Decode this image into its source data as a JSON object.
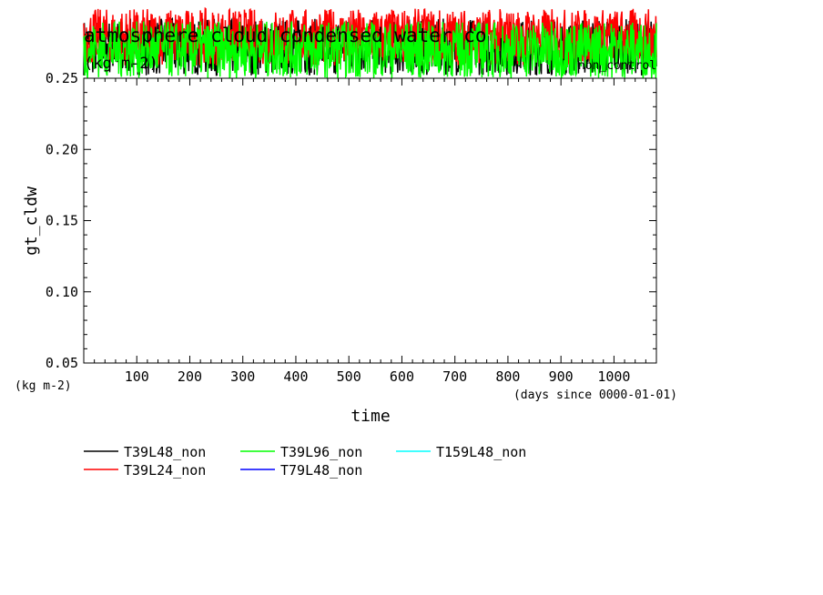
{
  "chart_data": {
    "type": "line",
    "title": "atmosphere cloud condensed water co",
    "title_units": "(kg m-2)",
    "subtitle_right": "non_control",
    "ylabel": "gt_cldw",
    "ylabel_units": "(kg m-2)",
    "xlabel": "time",
    "xlabel_units": "(days since 0000-01-01)",
    "xlim": [
      0,
      1080
    ],
    "ylim": [
      0.05,
      0.25
    ],
    "xticks": [
      100,
      200,
      300,
      400,
      500,
      600,
      700,
      800,
      900,
      1000
    ],
    "xtick_labels": [
      "100",
      "200",
      "300",
      "400",
      "500",
      "600",
      "700",
      "800",
      "900",
      "1000"
    ],
    "yticks": [
      0.05,
      0.1,
      0.15,
      0.2,
      0.25
    ],
    "ytick_labels": [
      "0.05",
      "0.10",
      "0.15",
      "0.20",
      "0.25"
    ],
    "grid": false,
    "legend_position": "bottom-left",
    "series": [
      {
        "name": "T39L48_non",
        "color": "#000000",
        "level": 0.272
      },
      {
        "name": "T39L24_non",
        "color": "#ff0000",
        "level": 0.279
      },
      {
        "name": "T39L96_non",
        "color": "#00ff00",
        "level": 0.27
      },
      {
        "name": "T79L48_non",
        "color": "#0000ff",
        "level": null
      },
      {
        "name": "T159L48_non",
        "color": "#00ffff",
        "level": null
      }
    ]
  }
}
